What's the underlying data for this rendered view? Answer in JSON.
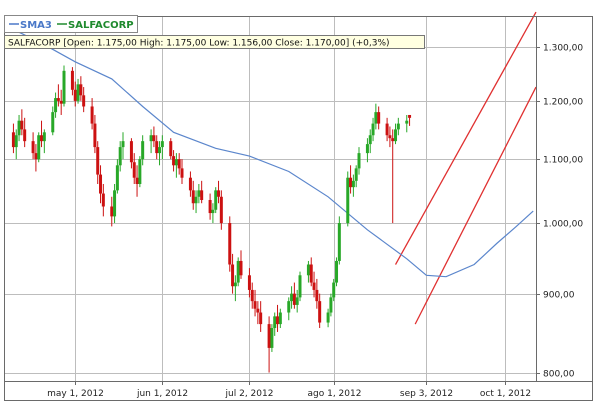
{
  "legend": [
    {
      "label": "SMA3",
      "color": "#4a78c8"
    },
    {
      "label": "SALFACORP",
      "color": "#1f8a2e"
    }
  ],
  "info_bar": {
    "text": "SALFACORP [Open: 1.175,00  High: 1.175,00  Low: 1.156,00  Close: 1.170,00] (+0,3%)",
    "background": "#ffffe1"
  },
  "colors": {
    "up": "#28a828",
    "down": "#cc1111",
    "sma": "#5b86cc",
    "channel": "#e03030",
    "grid": "#bdbdbd",
    "frame": "#6a6a6a"
  },
  "chart_data": {
    "type": "candlestick",
    "y_scale": "log",
    "ylim": [
      790,
      1360
    ],
    "y_ticks": [
      {
        "value": 800,
        "label": "800,00"
      },
      {
        "value": 900,
        "label": "900,00"
      },
      {
        "value": 1000,
        "label": "1.000,00"
      },
      {
        "value": 1100,
        "label": "1.100,00"
      },
      {
        "value": 1200,
        "label": "1.200,00"
      },
      {
        "value": 1300,
        "label": "1.300,00"
      }
    ],
    "x_range": [
      "2012-04-06",
      "2012-10-12"
    ],
    "x_ticks": [
      {
        "date": "2012-05-01",
        "label": "may 1, 2012"
      },
      {
        "date": "2012-06-01",
        "label": "jun 1, 2012"
      },
      {
        "date": "2012-07-02",
        "label": "jul 2, 2012"
      },
      {
        "date": "2012-08-01",
        "label": "ago 1, 2012"
      },
      {
        "date": "2012-09-03",
        "label": "sep 3, 2012"
      },
      {
        "date": "2012-10-01",
        "label": "oct 1, 2012"
      }
    ],
    "series": [
      {
        "name": "SALFACORP",
        "type": "candlestick",
        "start_date": "2012-04-09",
        "values": [
          [
            1145,
            1160,
            1110,
            1120
          ],
          [
            1120,
            1150,
            1100,
            1140
          ],
          [
            1140,
            1175,
            1130,
            1165
          ],
          [
            1165,
            1185,
            1140,
            1150
          ],
          [
            1150,
            1170,
            1120,
            1130
          ],
          [
            1130,
            1145,
            1100,
            1110
          ],
          [
            1110,
            1125,
            1080,
            1100
          ],
          [
            1100,
            1145,
            1095,
            1140
          ],
          [
            1140,
            1165,
            1120,
            1130
          ],
          [
            1130,
            1150,
            1110,
            1145
          ],
          [
            1145,
            1190,
            1140,
            1180
          ],
          [
            1180,
            1215,
            1170,
            1205
          ],
          [
            1205,
            1230,
            1190,
            1200
          ],
          [
            1200,
            1220,
            1175,
            1195
          ],
          [
            1195,
            1265,
            1190,
            1255
          ],
          [
            1255,
            1262,
            1210,
            1220
          ],
          [
            1220,
            1235,
            1190,
            1200
          ],
          [
            1200,
            1240,
            1195,
            1230
          ],
          [
            1230,
            1245,
            1200,
            1210
          ],
          [
            1210,
            1225,
            1180,
            1190
          ],
          [
            1190,
            1205,
            1150,
            1160
          ],
          [
            1160,
            1175,
            1110,
            1120
          ],
          [
            1120,
            1130,
            1060,
            1075
          ],
          [
            1075,
            1090,
            1030,
            1045
          ],
          [
            1045,
            1060,
            1010,
            1025
          ],
          [
            1025,
            1040,
            995,
            1010
          ],
          [
            1010,
            1060,
            1000,
            1050
          ],
          [
            1050,
            1100,
            1045,
            1090
          ],
          [
            1090,
            1130,
            1080,
            1120
          ],
          [
            1120,
            1145,
            1100,
            1130
          ],
          [
            1130,
            1135,
            1085,
            1095
          ],
          [
            1095,
            1110,
            1060,
            1070
          ],
          [
            1070,
            1090,
            1040,
            1060
          ],
          [
            1060,
            1105,
            1055,
            1100
          ],
          [
            1100,
            1140,
            1090,
            1130
          ],
          [
            1130,
            1150,
            1110,
            1140
          ],
          [
            1140,
            1155,
            1120,
            1130
          ],
          [
            1130,
            1140,
            1100,
            1110
          ],
          [
            1110,
            1130,
            1090,
            1120
          ],
          [
            1120,
            1140,
            1100,
            1130
          ],
          [
            1130,
            1135,
            1100,
            1105
          ],
          [
            1105,
            1115,
            1080,
            1090
          ],
          [
            1090,
            1110,
            1070,
            1100
          ],
          [
            1100,
            1110,
            1075,
            1085
          ],
          [
            1085,
            1100,
            1060,
            1070
          ],
          [
            1070,
            1080,
            1040,
            1050
          ],
          [
            1050,
            1065,
            1020,
            1030
          ],
          [
            1030,
            1050,
            1015,
            1040
          ],
          [
            1040,
            1060,
            1030,
            1050
          ],
          [
            1050,
            1065,
            1030,
            1035
          ],
          [
            1035,
            1045,
            1005,
            1015
          ],
          [
            1015,
            1030,
            1000,
            1020
          ],
          [
            1020,
            1055,
            1015,
            1050
          ],
          [
            1050,
            1065,
            1030,
            1040
          ],
          [
            1040,
            1050,
            990,
            1000
          ],
          [
            1000,
            1010,
            930,
            940
          ],
          [
            940,
            955,
            900,
            910
          ],
          [
            910,
            925,
            890,
            915
          ],
          [
            915,
            950,
            910,
            945
          ],
          [
            945,
            960,
            920,
            925
          ],
          [
            925,
            935,
            895,
            905
          ],
          [
            905,
            915,
            880,
            890
          ],
          [
            890,
            905,
            870,
            880
          ],
          [
            880,
            890,
            860,
            875
          ],
          [
            875,
            890,
            850,
            860
          ],
          [
            860,
            870,
            800,
            830
          ],
          [
            830,
            860,
            825,
            855
          ],
          [
            855,
            875,
            845,
            870
          ],
          [
            870,
            885,
            850,
            860
          ],
          [
            860,
            880,
            855,
            875
          ],
          [
            875,
            895,
            865,
            890
          ],
          [
            890,
            910,
            880,
            900
          ],
          [
            900,
            915,
            880,
            885
          ],
          [
            885,
            905,
            875,
            895
          ],
          [
            895,
            930,
            890,
            925
          ],
          [
            925,
            945,
            915,
            940
          ],
          [
            940,
            950,
            910,
            915
          ],
          [
            915,
            930,
            895,
            905
          ],
          [
            905,
            920,
            880,
            890
          ],
          [
            890,
            900,
            855,
            862
          ],
          [
            862,
            880,
            856,
            875
          ],
          [
            875,
            900,
            870,
            895
          ],
          [
            895,
            920,
            890,
            915
          ],
          [
            915,
            950,
            910,
            945
          ],
          [
            945,
            1010,
            940,
            1000
          ],
          [
            1000,
            1080,
            995,
            1070
          ],
          [
            1070,
            1090,
            1045,
            1055
          ],
          [
            1055,
            1075,
            1040,
            1065
          ],
          [
            1065,
            1090,
            1055,
            1085
          ],
          [
            1085,
            1120,
            1075,
            1110
          ],
          [
            1110,
            1135,
            1095,
            1125
          ],
          [
            1125,
            1150,
            1110,
            1140
          ],
          [
            1140,
            1170,
            1130,
            1160
          ],
          [
            1160,
            1195,
            1150,
            1180
          ],
          [
            1180,
            1190,
            1150,
            1160
          ],
          [
            1160,
            1170,
            1130,
            1140
          ],
          [
            1140,
            1155,
            1120,
            1135
          ],
          [
            1135,
            1150,
            1000,
            1130
          ],
          [
            1130,
            1160,
            1125,
            1150
          ],
          [
            1150,
            1170,
            1140,
            1160
          ],
          [
            1160,
            1175,
            1145,
            1165
          ],
          [
            1175,
            1175,
            1156,
            1170
          ]
        ]
      },
      {
        "name": "SMA3",
        "type": "line",
        "points": [
          [
            "2012-04-09",
            1335
          ],
          [
            "2012-04-20",
            1305
          ],
          [
            "2012-05-01",
            1272
          ],
          [
            "2012-05-14",
            1240
          ],
          [
            "2012-05-25",
            1190
          ],
          [
            "2012-06-05",
            1145
          ],
          [
            "2012-06-20",
            1118
          ],
          [
            "2012-07-02",
            1105
          ],
          [
            "2012-07-16",
            1080
          ],
          [
            "2012-07-30",
            1040
          ],
          [
            "2012-08-13",
            990
          ],
          [
            "2012-08-27",
            948
          ],
          [
            "2012-09-03",
            925
          ],
          [
            "2012-09-10",
            923
          ],
          [
            "2012-09-20",
            940
          ],
          [
            "2012-09-28",
            970
          ],
          [
            "2012-10-05",
            995
          ],
          [
            "2012-10-11",
            1018
          ]
        ]
      }
    ],
    "trend_channel": [
      {
        "from": [
          "2012-08-23",
          940
        ],
        "to": [
          "2012-10-12",
          1370
        ]
      },
      {
        "from": [
          "2012-08-30",
          860
        ],
        "to": [
          "2012-10-12",
          1225
        ]
      }
    ]
  }
}
